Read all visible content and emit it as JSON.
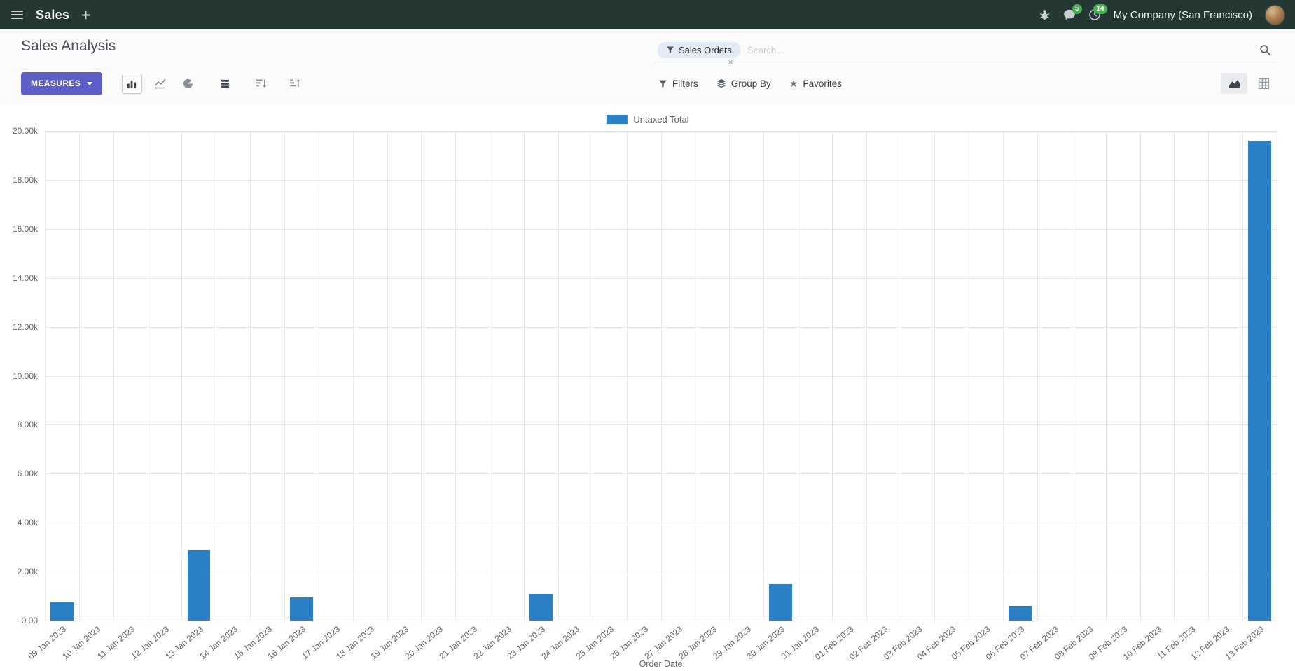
{
  "navbar": {
    "app_menu_label": "Sales",
    "company": "My Company (San Francisco)",
    "chat_badge": "5",
    "activity_badge": "14"
  },
  "control_panel": {
    "title": "Sales Analysis",
    "measures_label": "MEASURES",
    "filters_label": "Filters",
    "group_by_label": "Group By",
    "favorites_label": "Favorites",
    "search": {
      "facet": "Sales Orders",
      "facet_remove": "×",
      "placeholder": "Search..."
    }
  },
  "icons": {
    "star": "★"
  },
  "colors": {
    "navbar_bg": "#243733",
    "primary": "#5b5fc7",
    "badge_green": "#44b152",
    "bar_blue": "#2b7fc4",
    "facet_bg": "#e4ebf4"
  },
  "chart_data": {
    "type": "bar",
    "title": "",
    "legend_position": "top",
    "grid": true,
    "xlabel": "Order Date",
    "ylabel": "",
    "ylim": [
      0,
      20000
    ],
    "y_ticks": {
      "values": [
        0,
        2000,
        4000,
        6000,
        8000,
        10000,
        12000,
        14000,
        16000,
        18000,
        20000
      ],
      "labels": [
        "0.00",
        "2.00k",
        "4.00k",
        "6.00k",
        "8.00k",
        "10.00k",
        "12.00k",
        "14.00k",
        "16.00k",
        "18.00k",
        "20.00k"
      ]
    },
    "categories": [
      "09 Jan 2023",
      "10 Jan 2023",
      "11 Jan 2023",
      "12 Jan 2023",
      "13 Jan 2023",
      "14 Jan 2023",
      "15 Jan 2023",
      "16 Jan 2023",
      "17 Jan 2023",
      "18 Jan 2023",
      "19 Jan 2023",
      "20 Jan 2023",
      "21 Jan 2023",
      "22 Jan 2023",
      "23 Jan 2023",
      "24 Jan 2023",
      "25 Jan 2023",
      "26 Jan 2023",
      "27 Jan 2023",
      "28 Jan 2023",
      "29 Jan 2023",
      "30 Jan 2023",
      "31 Jan 2023",
      "01 Feb 2023",
      "02 Feb 2023",
      "03 Feb 2023",
      "04 Feb 2023",
      "05 Feb 2023",
      "06 Feb 2023",
      "07 Feb 2023",
      "08 Feb 2023",
      "09 Feb 2023",
      "10 Feb 2023",
      "11 Feb 2023",
      "12 Feb 2023",
      "13 Feb 2023"
    ],
    "series": [
      {
        "name": "Untaxed Total",
        "color": "#2b7fc4",
        "values": [
          750,
          0,
          0,
          0,
          2900,
          0,
          0,
          950,
          0,
          0,
          0,
          0,
          0,
          0,
          1100,
          0,
          0,
          0,
          0,
          0,
          0,
          1500,
          0,
          0,
          0,
          0,
          0,
          0,
          600,
          0,
          0,
          0,
          0,
          0,
          0,
          19600
        ]
      }
    ]
  }
}
